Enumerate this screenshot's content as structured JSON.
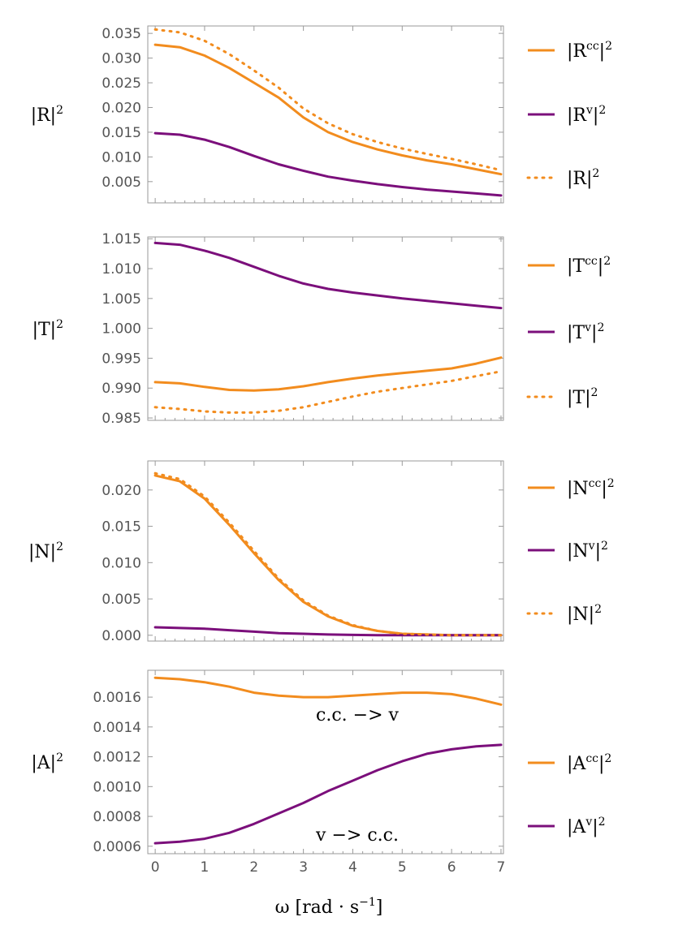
{
  "colors": {
    "orange": "#F28C1E",
    "purple": "#7B0F7B",
    "frame": "#9a9a9a",
    "tick_text": "#555555"
  },
  "x_axis_label": {
    "main": "ω [rad · s",
    "sup": "−1",
    "close": "]"
  },
  "x_ticks": [
    "0",
    "1",
    "2",
    "3",
    "4",
    "5",
    "6",
    "7"
  ],
  "chart_data": [
    {
      "type": "line",
      "ylabel": {
        "base": "|R|",
        "sup": "2"
      },
      "xlim": [
        -0.15,
        7.05
      ],
      "ylim": [
        0.0007,
        0.0365
      ],
      "y_ticks": [
        "0.005",
        "0.010",
        "0.015",
        "0.020",
        "0.025",
        "0.030",
        "0.035"
      ],
      "y_tick_values": [
        0.005,
        0.01,
        0.015,
        0.02,
        0.025,
        0.03,
        0.035
      ],
      "grid": false,
      "legend_position": "right",
      "series": [
        {
          "base": "|R",
          "sup": "cc",
          "tail": "|",
          "power": "2",
          "color": "orange",
          "dash": "solid",
          "x": [
            0,
            0.5,
            1,
            1.5,
            2,
            2.5,
            3,
            3.5,
            4,
            4.5,
            5,
            5.5,
            6,
            6.5,
            7
          ],
          "y": [
            0.0327,
            0.0322,
            0.0305,
            0.028,
            0.025,
            0.022,
            0.018,
            0.015,
            0.013,
            0.0115,
            0.0103,
            0.0093,
            0.0085,
            0.0075,
            0.0065
          ]
        },
        {
          "base": "|R",
          "sup": "v",
          "tail": "|",
          "power": "2",
          "color": "purple",
          "dash": "solid",
          "x": [
            0,
            0.5,
            1,
            1.5,
            2,
            2.5,
            3,
            3.5,
            4,
            4.5,
            5,
            5.5,
            6,
            6.5,
            7
          ],
          "y": [
            0.0148,
            0.0145,
            0.0135,
            0.012,
            0.0102,
            0.0085,
            0.0072,
            0.006,
            0.0052,
            0.0045,
            0.0039,
            0.0034,
            0.003,
            0.0026,
            0.0022
          ]
        },
        {
          "base": "|R|",
          "sup": "",
          "tail": "",
          "power": "2",
          "color": "orange",
          "dash": "dotted",
          "x": [
            0,
            0.5,
            1,
            1.5,
            2,
            2.5,
            3,
            3.5,
            4,
            4.5,
            5,
            5.5,
            6,
            6.5,
            7
          ],
          "y": [
            0.0358,
            0.0352,
            0.0335,
            0.0308,
            0.0275,
            0.024,
            0.0198,
            0.0168,
            0.0146,
            0.013,
            0.0117,
            0.0106,
            0.0096,
            0.0085,
            0.0073
          ]
        }
      ]
    },
    {
      "type": "line",
      "ylabel": {
        "base": "|T|",
        "sup": "2"
      },
      "xlim": [
        -0.15,
        7.05
      ],
      "ylim": [
        0.9846,
        1.0153
      ],
      "y_ticks": [
        "0.985",
        "0.990",
        "0.995",
        "1.000",
        "1.005",
        "1.010",
        "1.015"
      ],
      "y_tick_values": [
        0.985,
        0.99,
        0.995,
        1.0,
        1.005,
        1.01,
        1.015
      ],
      "grid": false,
      "legend_position": "right",
      "series": [
        {
          "base": "|T",
          "sup": "cc",
          "tail": "|",
          "power": "2",
          "color": "orange",
          "dash": "solid",
          "x": [
            0,
            0.5,
            1,
            1.5,
            2,
            2.5,
            3,
            3.5,
            4,
            4.5,
            5,
            5.5,
            6,
            6.5,
            7
          ],
          "y": [
            0.991,
            0.9908,
            0.9902,
            0.9897,
            0.9896,
            0.9898,
            0.9903,
            0.991,
            0.9916,
            0.9921,
            0.9925,
            0.9929,
            0.9933,
            0.9941,
            0.9951
          ]
        },
        {
          "base": "|T",
          "sup": "v",
          "tail": "|",
          "power": "2",
          "color": "purple",
          "dash": "solid",
          "x": [
            0,
            0.5,
            1,
            1.5,
            2,
            2.5,
            3,
            3.5,
            4,
            4.5,
            5,
            5.5,
            6,
            6.5,
            7
          ],
          "y": [
            1.0143,
            1.014,
            1.013,
            1.0118,
            1.0103,
            1.0088,
            1.0075,
            1.0066,
            1.006,
            1.0055,
            1.005,
            1.0046,
            1.0042,
            1.0038,
            1.0034
          ]
        },
        {
          "base": "|T|",
          "sup": "",
          "tail": "",
          "power": "2",
          "color": "orange",
          "dash": "dotted",
          "x": [
            0,
            0.5,
            1,
            1.5,
            2,
            2.5,
            3,
            3.5,
            4,
            4.5,
            5,
            5.5,
            6,
            6.5,
            7
          ],
          "y": [
            0.9868,
            0.9865,
            0.9861,
            0.9859,
            0.9859,
            0.9862,
            0.9868,
            0.9877,
            0.9886,
            0.9894,
            0.99,
            0.9906,
            0.9912,
            0.992,
            0.9928
          ]
        }
      ]
    },
    {
      "type": "line",
      "ylabel": {
        "base": "|N|",
        "sup": "2"
      },
      "xlim": [
        -0.15,
        7.05
      ],
      "ylim": [
        -0.0008,
        0.024
      ],
      "y_ticks": [
        "0.000",
        "0.005",
        "0.010",
        "0.015",
        "0.020"
      ],
      "y_tick_values": [
        0.0,
        0.005,
        0.01,
        0.015,
        0.02
      ],
      "grid": false,
      "legend_position": "right",
      "series": [
        {
          "base": "|N",
          "sup": "cc",
          "tail": "|",
          "power": "2",
          "color": "orange",
          "dash": "solid",
          "x": [
            0,
            0.5,
            1,
            1.5,
            2,
            2.5,
            3,
            3.5,
            4,
            4.5,
            5,
            5.5,
            6,
            6.5,
            7
          ],
          "y": [
            0.022,
            0.0212,
            0.0188,
            0.0152,
            0.0113,
            0.0076,
            0.0046,
            0.0026,
            0.0013,
            0.0006,
            0.0002,
            0.0001,
            0.0,
            0.0,
            0.0
          ]
        },
        {
          "base": "|N",
          "sup": "v",
          "tail": "|",
          "power": "2",
          "color": "purple",
          "dash": "solid",
          "x": [
            0,
            0.5,
            1,
            1.5,
            2,
            2.5,
            3,
            3.5,
            4,
            4.5,
            5,
            5.5,
            6,
            6.5,
            7
          ],
          "y": [
            0.0011,
            0.001,
            0.0009,
            0.0007,
            0.0005,
            0.0003,
            0.0002,
            0.0001,
            5e-05,
            2e-05,
            0.0,
            0.0,
            0.0,
            0.0,
            0.0
          ]
        },
        {
          "base": "|N|",
          "sup": "",
          "tail": "",
          "power": "2",
          "color": "orange",
          "dash": "dotted",
          "x": [
            0,
            0.5,
            1,
            1.5,
            2,
            2.5,
            3,
            3.5,
            4,
            4.5,
            5,
            5.5,
            6,
            6.5,
            7
          ],
          "y": [
            0.0223,
            0.0215,
            0.0191,
            0.0155,
            0.0116,
            0.0078,
            0.0048,
            0.0027,
            0.0014,
            0.0006,
            0.0002,
            0.0001,
            0.0,
            0.0,
            0.0
          ]
        }
      ]
    },
    {
      "type": "line",
      "ylabel": {
        "base": "|A|",
        "sup": "2"
      },
      "xlim": [
        -0.15,
        7.05
      ],
      "ylim": [
        0.00055,
        0.00178
      ],
      "y_ticks": [
        "0.0006",
        "0.0008",
        "0.0010",
        "0.0012",
        "0.0014",
        "0.0016"
      ],
      "y_tick_values": [
        0.0006,
        0.0008,
        0.001,
        0.0012,
        0.0014,
        0.0016
      ],
      "grid": false,
      "legend_position": "right",
      "annotations": [
        "c.c. −> v",
        "v −> c.c."
      ],
      "series": [
        {
          "base": "|A",
          "sup": "cc",
          "tail": "|",
          "power": "2",
          "color": "orange",
          "dash": "solid",
          "x": [
            0,
            0.5,
            1,
            1.5,
            2,
            2.5,
            3,
            3.5,
            4,
            4.5,
            5,
            5.5,
            6,
            6.5,
            7
          ],
          "y": [
            0.00173,
            0.00172,
            0.0017,
            0.00167,
            0.00163,
            0.00161,
            0.0016,
            0.0016,
            0.00161,
            0.00162,
            0.00163,
            0.00163,
            0.00162,
            0.00159,
            0.00155
          ]
        },
        {
          "base": "|A",
          "sup": "v",
          "tail": "|",
          "power": "2",
          "color": "purple",
          "dash": "solid",
          "x": [
            0,
            0.5,
            1,
            1.5,
            2,
            2.5,
            3,
            3.5,
            4,
            4.5,
            5,
            5.5,
            6,
            6.5,
            7
          ],
          "y": [
            0.00062,
            0.00063,
            0.00065,
            0.00069,
            0.00075,
            0.00082,
            0.00089,
            0.00097,
            0.00104,
            0.00111,
            0.00117,
            0.00122,
            0.00125,
            0.00127,
            0.00128
          ]
        }
      ]
    }
  ]
}
